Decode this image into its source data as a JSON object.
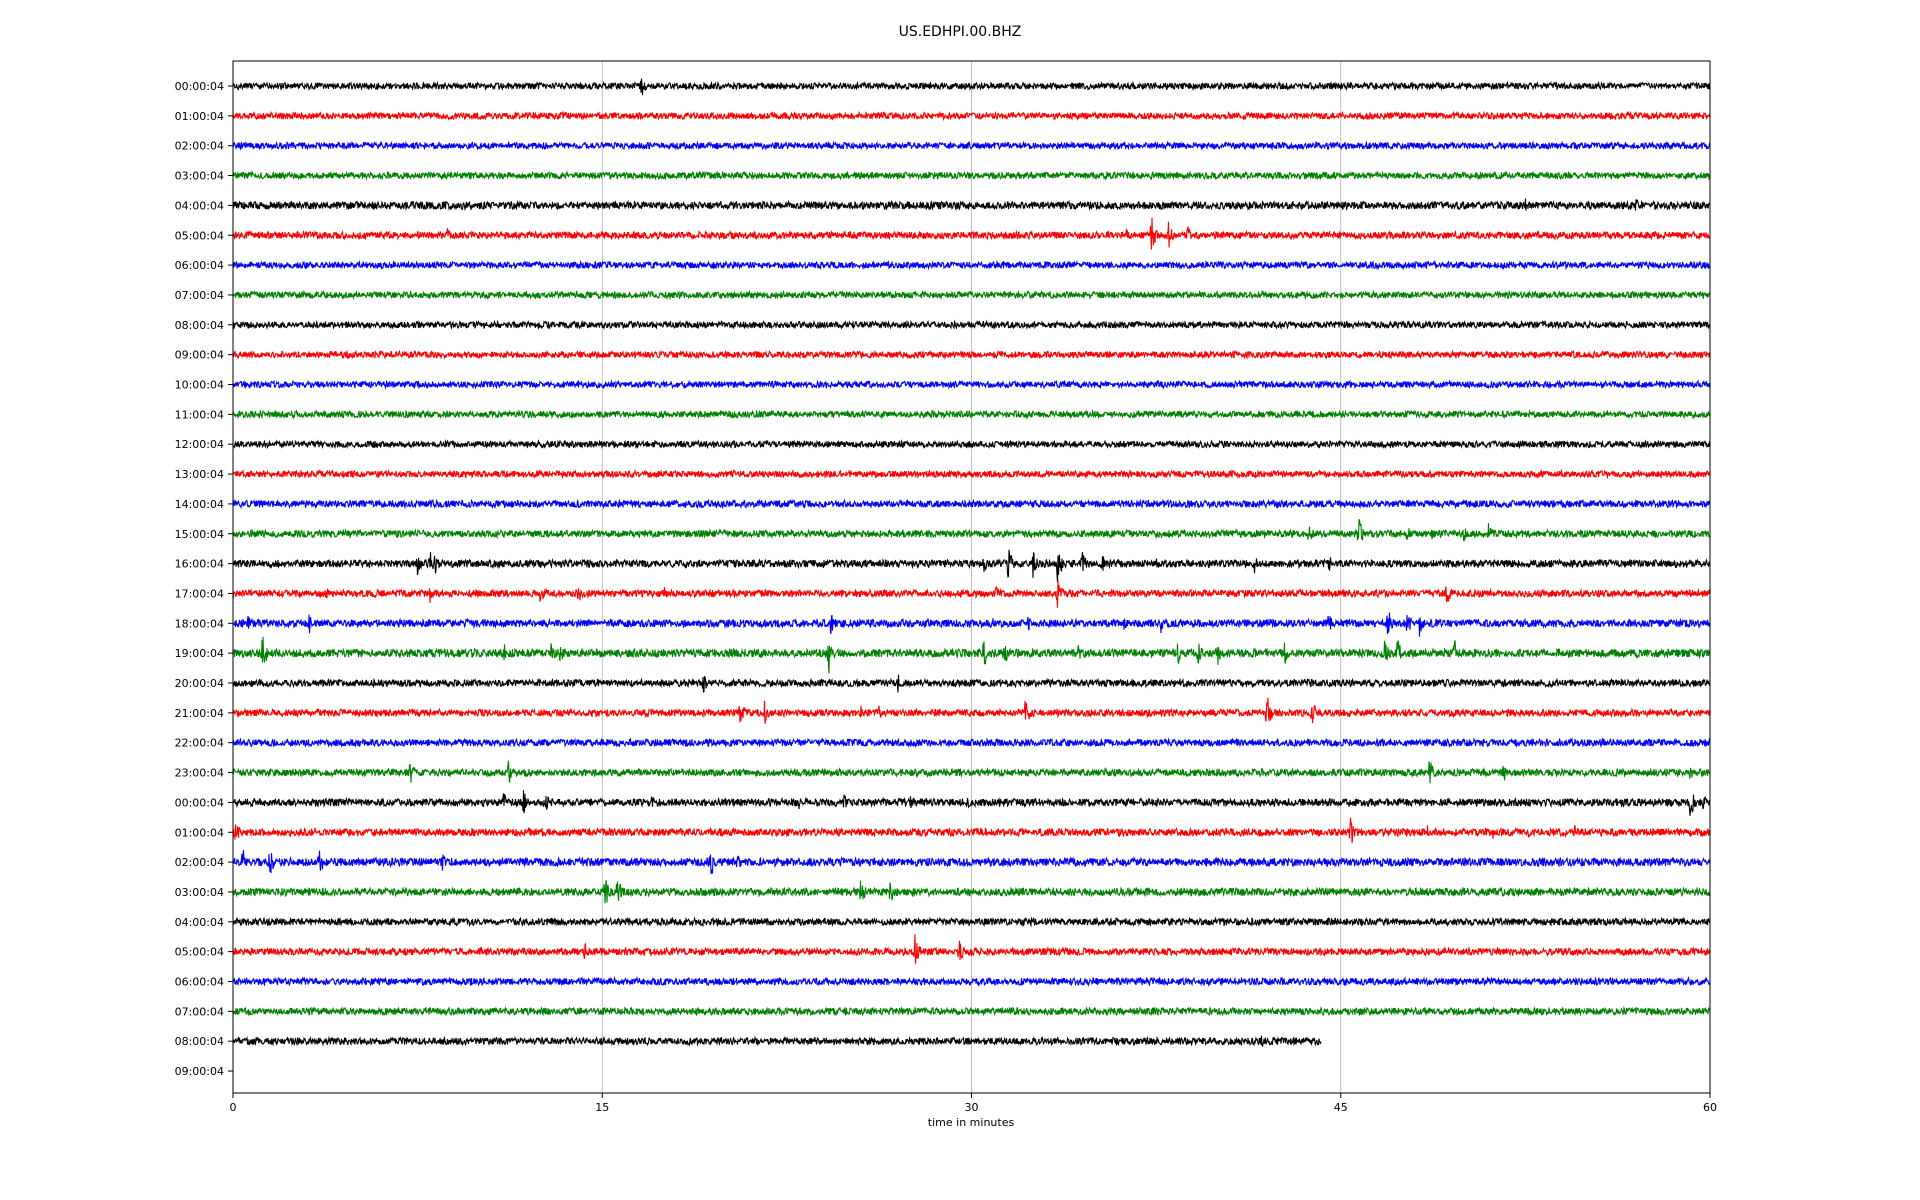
{
  "chart_data": {
    "type": "line",
    "title": "US.EDHPI.00.BHZ",
    "xlabel": "time in minutes",
    "ylabel": "",
    "xlim": [
      0,
      60
    ],
    "x_ticks": [
      0,
      15,
      30,
      45,
      60
    ],
    "x_tick_labels": [
      "0",
      "15",
      "30",
      "45",
      "60"
    ],
    "grid_x": true,
    "colors": [
      "#000000",
      "#ff0000",
      "#0000ff",
      "#008000"
    ],
    "row_labels": [
      "00:00:04",
      "01:00:04",
      "02:00:04",
      "03:00:04",
      "04:00:04",
      "05:00:04",
      "06:00:04",
      "07:00:04",
      "08:00:04",
      "09:00:04",
      "10:00:04",
      "11:00:04",
      "12:00:04",
      "13:00:04",
      "14:00:04",
      "15:00:04",
      "16:00:04",
      "17:00:04",
      "18:00:04",
      "19:00:04",
      "20:00:04",
      "21:00:04",
      "22:00:04",
      "23:00:04",
      "00:00:04",
      "01:00:04",
      "02:00:04",
      "03:00:04",
      "04:00:04",
      "05:00:04",
      "06:00:04",
      "07:00:04",
      "08:00:04",
      "09:00:04"
    ],
    "traces": [
      {
        "row": 0,
        "start": 0,
        "end": 60,
        "noise": 0.12,
        "events": [
          [
            16.6,
            0.5
          ]
        ]
      },
      {
        "row": 1,
        "start": 0,
        "end": 60,
        "noise": 0.12,
        "events": []
      },
      {
        "row": 2,
        "start": 0,
        "end": 60,
        "noise": 0.12,
        "events": [
          [
            44.0,
            0.2
          ]
        ]
      },
      {
        "row": 3,
        "start": 0,
        "end": 60,
        "noise": 0.12,
        "events": []
      },
      {
        "row": 4,
        "start": 0,
        "end": 60,
        "noise": 0.14,
        "events": [
          [
            52.5,
            0.3
          ],
          [
            57.0,
            0.3
          ],
          [
            60.0,
            0.4
          ]
        ]
      },
      {
        "row": 5,
        "start": 0,
        "end": 60,
        "noise": 0.13,
        "events": [
          [
            8.7,
            0.3
          ],
          [
            36.3,
            0.3
          ],
          [
            37.3,
            0.8
          ],
          [
            38.0,
            0.6
          ],
          [
            38.8,
            0.4
          ]
        ]
      },
      {
        "row": 6,
        "start": 0,
        "end": 60,
        "noise": 0.12,
        "events": []
      },
      {
        "row": 7,
        "start": 0,
        "end": 60,
        "noise": 0.12,
        "events": []
      },
      {
        "row": 8,
        "start": 0,
        "end": 60,
        "noise": 0.12,
        "events": []
      },
      {
        "row": 9,
        "start": 0,
        "end": 60,
        "noise": 0.12,
        "events": [
          [
            25.4,
            0.2
          ]
        ]
      },
      {
        "row": 10,
        "start": 0,
        "end": 60,
        "noise": 0.12,
        "events": []
      },
      {
        "row": 11,
        "start": 0,
        "end": 60,
        "noise": 0.12,
        "events": []
      },
      {
        "row": 12,
        "start": 0,
        "end": 60,
        "noise": 0.12,
        "events": []
      },
      {
        "row": 13,
        "start": 0,
        "end": 60,
        "noise": 0.12,
        "events": [
          [
            58.0,
            0.2
          ]
        ]
      },
      {
        "row": 14,
        "start": 0,
        "end": 60,
        "noise": 0.13,
        "events": []
      },
      {
        "row": 15,
        "start": 0,
        "end": 60,
        "noise": 0.13,
        "events": [
          [
            43.7,
            0.4
          ],
          [
            45.7,
            0.9
          ],
          [
            47.7,
            0.4
          ],
          [
            48.7,
            0.3
          ],
          [
            50.0,
            0.3
          ],
          [
            51.0,
            0.5
          ]
        ]
      },
      {
        "row": 16,
        "start": 0,
        "end": 60,
        "noise": 0.14,
        "events": [
          [
            7.5,
            0.5
          ],
          [
            8.0,
            0.5
          ],
          [
            8.2,
            0.5
          ],
          [
            30.5,
            0.4
          ],
          [
            31.5,
            0.7
          ],
          [
            32.5,
            0.6
          ],
          [
            33.5,
            0.9
          ],
          [
            34.5,
            0.5
          ],
          [
            35.3,
            0.4
          ],
          [
            37.5,
            0.3
          ],
          [
            41.5,
            0.4
          ],
          [
            44.5,
            0.4
          ]
        ]
      },
      {
        "row": 17,
        "start": 0,
        "end": 60,
        "noise": 0.13,
        "events": [
          [
            3.8,
            0.3
          ],
          [
            8.0,
            0.4
          ],
          [
            12.5,
            0.5
          ],
          [
            14.0,
            0.5
          ],
          [
            17.5,
            0.3
          ],
          [
            31.0,
            0.3
          ],
          [
            33.5,
            0.6
          ],
          [
            49.3,
            0.5
          ]
        ]
      },
      {
        "row": 18,
        "start": 0,
        "end": 60,
        "noise": 0.14,
        "events": [
          [
            0.6,
            0.3
          ],
          [
            3.1,
            0.4
          ],
          [
            24.3,
            0.5
          ],
          [
            28.2,
            0.3
          ],
          [
            30.8,
            0.3
          ],
          [
            32.3,
            0.3
          ],
          [
            36.2,
            0.3
          ],
          [
            37.7,
            0.4
          ],
          [
            39.0,
            0.3
          ],
          [
            44.5,
            0.4
          ],
          [
            46.9,
            0.7
          ],
          [
            47.7,
            0.5
          ],
          [
            48.2,
            0.5
          ]
        ]
      },
      {
        "row": 19,
        "start": 0,
        "end": 60,
        "noise": 0.15,
        "events": [
          [
            1.2,
            0.8
          ],
          [
            11.0,
            0.4
          ],
          [
            12.9,
            0.5
          ],
          [
            13.3,
            0.4
          ],
          [
            24.2,
            0.8
          ],
          [
            30.5,
            0.7
          ],
          [
            31.3,
            0.6
          ],
          [
            34.3,
            0.4
          ],
          [
            38.4,
            0.6
          ],
          [
            39.2,
            0.5
          ],
          [
            40.0,
            0.5
          ],
          [
            42.7,
            0.5
          ],
          [
            46.8,
            0.6
          ],
          [
            47.3,
            0.6
          ],
          [
            49.6,
            0.6
          ]
        ]
      },
      {
        "row": 20,
        "start": 0,
        "end": 60,
        "noise": 0.13,
        "events": [
          [
            19.1,
            0.5
          ],
          [
            27.0,
            0.4
          ]
        ]
      },
      {
        "row": 21,
        "start": 0,
        "end": 60,
        "noise": 0.13,
        "events": [
          [
            20.6,
            0.6
          ],
          [
            21.6,
            0.5
          ],
          [
            25.5,
            0.3
          ],
          [
            26.2,
            0.4
          ],
          [
            32.2,
            0.8
          ],
          [
            42.0,
            0.8
          ],
          [
            43.8,
            0.7
          ]
        ]
      },
      {
        "row": 22,
        "start": 0,
        "end": 60,
        "noise": 0.13,
        "events": []
      },
      {
        "row": 23,
        "start": 0,
        "end": 60,
        "noise": 0.13,
        "events": [
          [
            7.2,
            0.5
          ],
          [
            11.2,
            0.5
          ],
          [
            40.0,
            0.4
          ],
          [
            48.6,
            0.6
          ],
          [
            51.6,
            0.4
          ],
          [
            59.2,
            0.3
          ]
        ]
      },
      {
        "row": 24,
        "start": 0,
        "end": 60,
        "noise": 0.14,
        "events": [
          [
            11.0,
            0.4
          ],
          [
            11.8,
            0.5
          ],
          [
            12.7,
            0.4
          ],
          [
            17.0,
            0.3
          ],
          [
            23.0,
            0.3
          ],
          [
            24.8,
            0.4
          ],
          [
            27.5,
            0.3
          ],
          [
            29.8,
            0.3
          ],
          [
            59.2,
            0.7
          ],
          [
            59.7,
            0.5
          ]
        ]
      },
      {
        "row": 25,
        "start": 0,
        "end": 60,
        "noise": 0.14,
        "events": [
          [
            0.1,
            0.5
          ],
          [
            45.4,
            0.6
          ],
          [
            48.5,
            0.4
          ],
          [
            51.2,
            0.4
          ],
          [
            52.6,
            0.3
          ],
          [
            54.5,
            0.3
          ]
        ]
      },
      {
        "row": 26,
        "start": 0,
        "end": 60,
        "noise": 0.15,
        "events": [
          [
            0.4,
            0.6
          ],
          [
            1.5,
            0.6
          ],
          [
            3.5,
            0.7
          ],
          [
            8.5,
            0.5
          ],
          [
            19.4,
            0.7
          ],
          [
            20.5,
            0.5
          ]
        ]
      },
      {
        "row": 27,
        "start": 0,
        "end": 60,
        "noise": 0.14,
        "events": [
          [
            5.5,
            0.2
          ],
          [
            15.1,
            0.8
          ],
          [
            15.6,
            0.7
          ],
          [
            25.5,
            0.6
          ],
          [
            26.7,
            0.5
          ]
        ]
      },
      {
        "row": 28,
        "start": 0,
        "end": 60,
        "noise": 0.13,
        "events": []
      },
      {
        "row": 29,
        "start": 0,
        "end": 60,
        "noise": 0.13,
        "events": [
          [
            14.3,
            0.4
          ],
          [
            27.7,
            0.7
          ],
          [
            29.5,
            0.5
          ]
        ]
      },
      {
        "row": 30,
        "start": 0,
        "end": 60,
        "noise": 0.13,
        "events": []
      },
      {
        "row": 31,
        "start": 0,
        "end": 60,
        "noise": 0.13,
        "events": []
      },
      {
        "row": 32,
        "start": 0,
        "end": 44.2,
        "noise": 0.13,
        "events": [
          [
            41.8,
            0.3
          ]
        ]
      }
    ]
  }
}
